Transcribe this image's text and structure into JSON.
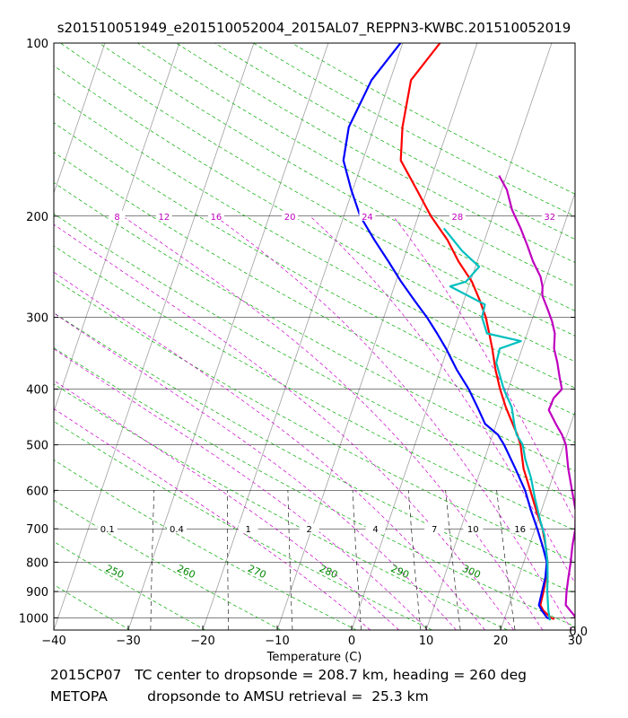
{
  "chart_data": {
    "type": "line",
    "title": "s201510051949_e201510052004_2015AL07_REPPN3-KWBC.201510052019",
    "xlabel": "Temperature (C)",
    "ylabel": "",
    "xlim": [
      -40,
      30
    ],
    "ylim": [
      1050,
      100
    ],
    "yscale": "log",
    "x_ticks": [
      -40,
      -30,
      -20,
      -10,
      0,
      10,
      20,
      30
    ],
    "x_tick_labels": [
      "−40",
      "−30",
      "−20",
      "−10",
      "0",
      "10",
      "20",
      "30"
    ],
    "y_ticks": [
      100,
      200,
      300,
      400,
      500,
      600,
      700,
      800,
      900,
      1000
    ],
    "y_tick_labels": [
      "100",
      "200",
      "300",
      "400",
      "500",
      "600",
      "700",
      "800",
      "900",
      "1000"
    ],
    "grid": true,
    "mixing_ratio_labels": {
      "pressure": 200,
      "values": [
        "8",
        "12",
        "16",
        "20",
        "24",
        "28",
        "32"
      ],
      "positions_c": [
        -31.5,
        -25.2,
        -18.2,
        -8.3,
        2.1,
        14.2,
        26.6
      ]
    },
    "bottom_axis_labels": {
      "pressure": 700,
      "values": [
        "0.1",
        "0.4",
        "1",
        "2",
        "4",
        "7",
        "10",
        "16"
      ],
      "positions_c": [
        -32.8,
        -23.5,
        -13.9,
        -5.7,
        3.2,
        11.1,
        16.3,
        22.6
      ]
    },
    "theta_labels": {
      "pressure": 830,
      "values": [
        "250",
        "260",
        "270",
        "280",
        "290",
        "300"
      ],
      "positions_c": [
        -31.8,
        -22.2,
        -12.7,
        -3.1,
        6.5,
        16.1
      ]
    },
    "corner_label": "0.0",
    "series": [
      {
        "color": "#ff0000",
        "points": [
          [
            -15.0,
            100
          ],
          [
            -17.2,
            116
          ],
          [
            -16.2,
            140
          ],
          [
            -14.9,
            160
          ],
          [
            -11.4,
            180
          ],
          [
            -8.3,
            200
          ],
          [
            -5.0,
            220
          ],
          [
            -2.5,
            240
          ],
          [
            0.2,
            260
          ],
          [
            2.1,
            280
          ],
          [
            3.7,
            300
          ],
          [
            4.9,
            320
          ],
          [
            6.0,
            340
          ],
          [
            7.4,
            370
          ],
          [
            8.9,
            400
          ],
          [
            10.5,
            430
          ],
          [
            12.2,
            460
          ],
          [
            13.3,
            480
          ],
          [
            14.2,
            500
          ],
          [
            15.7,
            550
          ],
          [
            17.6,
            600
          ],
          [
            19.3,
            650
          ],
          [
            21.0,
            700
          ],
          [
            22.2,
            750
          ],
          [
            23.2,
            800
          ],
          [
            23.7,
            850
          ],
          [
            24.0,
            900
          ],
          [
            24.2,
            950
          ],
          [
            24.8,
            970
          ],
          [
            26.2,
            1000
          ],
          [
            26.7,
            1005
          ]
        ]
      },
      {
        "color": "#0000ff",
        "points": [
          [
            -20.3,
            100
          ],
          [
            -22.5,
            116
          ],
          [
            -23.4,
            140
          ],
          [
            -22.6,
            160
          ],
          [
            -20.2,
            180
          ],
          [
            -17.8,
            200
          ],
          [
            -14.8,
            220
          ],
          [
            -11.9,
            240
          ],
          [
            -9.3,
            260
          ],
          [
            -6.7,
            280
          ],
          [
            -4.2,
            300
          ],
          [
            -2.1,
            320
          ],
          [
            -0.2,
            340
          ],
          [
            2.2,
            370
          ],
          [
            4.7,
            400
          ],
          [
            6.7,
            430
          ],
          [
            8.5,
            460
          ],
          [
            10.7,
            480
          ],
          [
            12.0,
            500
          ],
          [
            14.6,
            550
          ],
          [
            16.9,
            600
          ],
          [
            18.6,
            650
          ],
          [
            20.3,
            700
          ],
          [
            21.8,
            750
          ],
          [
            23.1,
            800
          ],
          [
            23.6,
            850
          ],
          [
            23.8,
            900
          ],
          [
            24.0,
            950
          ],
          [
            24.6,
            970
          ],
          [
            25.7,
            1000
          ],
          [
            26.2,
            1005
          ]
        ]
      },
      {
        "color": "#00bfbf",
        "points": [
          [
            -6.0,
            210
          ],
          [
            -2.5,
            230
          ],
          [
            0.5,
            245
          ],
          [
            -0.6,
            260
          ],
          [
            -2.5,
            265
          ],
          [
            3.0,
            285
          ],
          [
            3.2,
            300
          ],
          [
            4.6,
            320
          ],
          [
            9.5,
            330
          ],
          [
            7.0,
            340
          ],
          [
            7.2,
            360
          ],
          [
            9.4,
            400
          ],
          [
            11.3,
            430
          ],
          [
            12.4,
            460
          ],
          [
            13.2,
            480
          ],
          [
            14.5,
            500
          ],
          [
            15.5,
            530
          ],
          [
            17.1,
            570
          ],
          [
            18.6,
            620
          ],
          [
            20.4,
            680
          ],
          [
            21.6,
            720
          ],
          [
            22.6,
            770
          ],
          [
            23.2,
            800
          ],
          [
            23.9,
            850
          ],
          [
            24.5,
            900
          ],
          [
            25.5,
            970
          ],
          [
            26.2,
            1010
          ]
        ]
      },
      {
        "color": "#bf00bf",
        "points": [
          [
            -1.0,
            170
          ],
          [
            0.7,
            180
          ],
          [
            2.3,
            195
          ],
          [
            4.3,
            210
          ],
          [
            6.0,
            225
          ],
          [
            7.5,
            240
          ],
          [
            9.2,
            255
          ],
          [
            9.9,
            265
          ],
          [
            10.3,
            275
          ],
          [
            11.6,
            290
          ],
          [
            12.8,
            305
          ],
          [
            13.7,
            320
          ],
          [
            14.3,
            340
          ],
          [
            15.4,
            360
          ],
          [
            16.3,
            380
          ],
          [
            17.2,
            400
          ],
          [
            16.5,
            415
          ],
          [
            16.4,
            435
          ],
          [
            18.0,
            460
          ],
          [
            19.3,
            480
          ],
          [
            20.3,
            500
          ],
          [
            21.7,
            550
          ],
          [
            23.2,
            600
          ],
          [
            24.6,
            650
          ],
          [
            25.4,
            700
          ],
          [
            25.8,
            750
          ],
          [
            26.3,
            800
          ],
          [
            26.7,
            850
          ],
          [
            27.1,
            900
          ],
          [
            27.6,
            950
          ],
          [
            29.2,
            990
          ],
          [
            29.5,
            1000
          ],
          [
            30.5,
            1015
          ]
        ]
      }
    ]
  },
  "footer": {
    "line1_label": "2015CP07",
    "line1_text": "TC center to dropsonde = 208.7 km, heading = 260 deg",
    "line2_label": "METOPA",
    "line2_text": "dropsonde to AMSU retrieval =  25.3 km"
  },
  "colors": {
    "frame": "#000000",
    "isobar": "#000000",
    "isotherm": "#a0a0a0",
    "dry_adiabat": "#00aa00",
    "moist_adiabat": "#cc00cc",
    "mixing_ratio": "#000000"
  }
}
